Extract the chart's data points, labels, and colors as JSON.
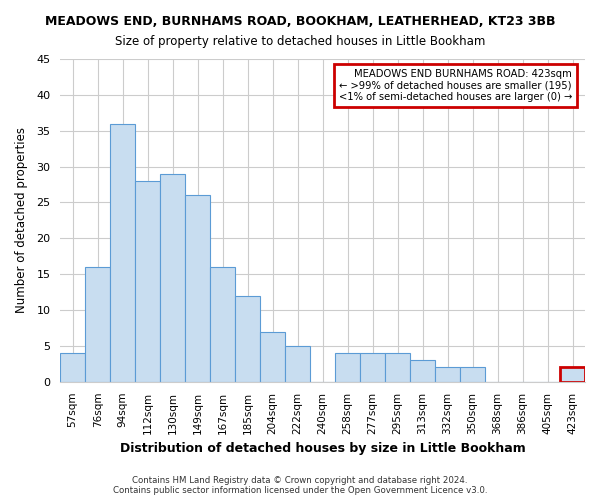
{
  "title": "MEADOWS END, BURNHAMS ROAD, BOOKHAM, LEATHERHEAD, KT23 3BB",
  "subtitle": "Size of property relative to detached houses in Little Bookham",
  "xlabel": "Distribution of detached houses by size in Little Bookham",
  "ylabel": "Number of detached properties",
  "bar_color": "#c8ddf0",
  "bar_edge_color": "#5b9bd5",
  "categories": [
    "57sqm",
    "76sqm",
    "94sqm",
    "112sqm",
    "130sqm",
    "149sqm",
    "167sqm",
    "185sqm",
    "204sqm",
    "222sqm",
    "240sqm",
    "258sqm",
    "277sqm",
    "295sqm",
    "313sqm",
    "332sqm",
    "350sqm",
    "368sqm",
    "386sqm",
    "405sqm",
    "423sqm"
  ],
  "values": [
    4,
    16,
    36,
    28,
    29,
    26,
    16,
    12,
    7,
    5,
    0,
    4,
    4,
    4,
    3,
    2,
    2,
    0,
    0,
    0,
    2
  ],
  "ylim": [
    0,
    45
  ],
  "yticks": [
    0,
    5,
    10,
    15,
    20,
    25,
    30,
    35,
    40,
    45
  ],
  "annotation_line1": "MEADOWS END BURNHAMS ROAD: 423sqm",
  "annotation_line2": "← >99% of detached houses are smaller (195)",
  "annotation_line3": "<1% of semi-detached houses are larger (0) →",
  "annotation_box_facecolor": "#ffffff",
  "annotation_box_edge_color": "#cc0000",
  "highlight_bar_index": 20,
  "footer_text": "Contains HM Land Registry data © Crown copyright and database right 2024.\nContains public sector information licensed under the Open Government Licence v3.0.",
  "background_color": "#ffffff",
  "grid_color": "#cccccc",
  "title_fontsize": 9,
  "subtitle_fontsize": 8.5
}
